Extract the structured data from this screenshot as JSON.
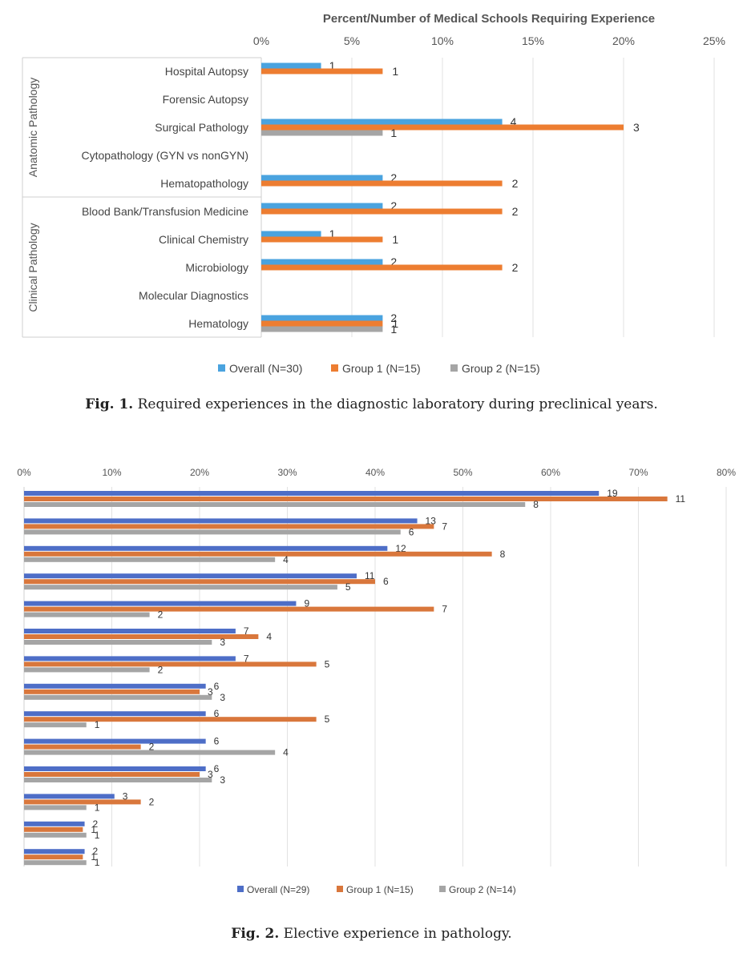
{
  "chart_data": [
    {
      "type": "bar",
      "orientation": "horizontal",
      "title": "Percent/Number of Medical Schools Requiring Experience",
      "xlim": [
        0,
        25
      ],
      "x_ticks": [
        "0%",
        "5%",
        "10%",
        "15%",
        "20%",
        "25%"
      ],
      "x_tick_values": [
        0,
        5,
        10,
        15,
        20,
        25
      ],
      "groups": [
        {
          "label": "Anatomic Pathology",
          "rows": [
            0,
            4
          ]
        },
        {
          "label": "Clinical Pathology",
          "rows": [
            5,
            9
          ]
        }
      ],
      "categories": [
        "Hospital Autopsy",
        "Forensic Autopsy",
        "Surgical Pathology",
        "Cytopathology (GYN vs nonGYN)",
        "Hematopathology",
        "Blood Bank/Transfusion Medicine",
        "Clinical Chemistry",
        "Microbiology",
        "Molecular Diagnostics",
        "Hematology"
      ],
      "series": [
        {
          "name": "Overall (N=30)",
          "color": "#4aa3df",
          "values": [
            3.3,
            null,
            13.3,
            null,
            6.7,
            6.7,
            3.3,
            6.7,
            null,
            6.7
          ],
          "labels": [
            "1",
            "",
            "4",
            "",
            "2",
            "2",
            "1",
            "2",
            "",
            "2"
          ]
        },
        {
          "name": "Group 1 (N=15)",
          "color": "#ed7d31",
          "values": [
            6.7,
            null,
            20.0,
            null,
            13.3,
            13.3,
            6.7,
            13.3,
            null,
            6.7
          ],
          "labels": [
            "1",
            "",
            "3",
            "",
            "2",
            "2",
            "1",
            "2",
            "",
            "1"
          ]
        },
        {
          "name": "Group 2 (N=15)",
          "color": "#a5a5a5",
          "values": [
            null,
            null,
            6.7,
            null,
            null,
            null,
            null,
            null,
            null,
            6.7
          ],
          "labels": [
            "",
            "",
            "1",
            "",
            "",
            "",
            "",
            "",
            "",
            "1"
          ]
        }
      ],
      "legend": "bottom"
    },
    {
      "type": "bar",
      "orientation": "horizontal",
      "xlim": [
        0,
        80
      ],
      "x_ticks": [
        "0%",
        "10%",
        "20%",
        "30%",
        "40%",
        "50%",
        "60%",
        "70%",
        "80%"
      ],
      "x_tick_values": [
        0,
        10,
        20,
        30,
        40,
        50,
        60,
        70,
        80
      ],
      "series": [
        {
          "name": "Overall (N=29)",
          "color": "#4e6ec7",
          "values": [
            65.5,
            44.8,
            41.4,
            37.9,
            31.0,
            24.1,
            24.1,
            20.7,
            20.7,
            20.7,
            20.7,
            10.3,
            6.9,
            6.9
          ],
          "labels": [
            "19",
            "13",
            "12",
            "11",
            "9",
            "7",
            "7",
            "6",
            "6",
            "6",
            "6",
            "3",
            "2",
            "2"
          ]
        },
        {
          "name": "Group 1 (N=15)",
          "color": "#d9773c",
          "values": [
            73.3,
            46.7,
            53.3,
            40.0,
            46.7,
            26.7,
            33.3,
            20.0,
            33.3,
            13.3,
            20.0,
            13.3,
            6.7,
            6.7
          ],
          "labels": [
            "11",
            "7",
            "8",
            "6",
            "7",
            "4",
            "5",
            "3",
            "5",
            "2",
            "3",
            "2",
            "1",
            "1"
          ]
        },
        {
          "name": "Group 2 (N=14)",
          "color": "#a5a5a5",
          "values": [
            57.1,
            42.9,
            28.6,
            35.7,
            14.3,
            21.4,
            14.3,
            21.4,
            7.1,
            28.6,
            21.4,
            7.1,
            7.1,
            7.1
          ],
          "labels": [
            "8",
            "6",
            "4",
            "5",
            "2",
            "3",
            "2",
            "3",
            "1",
            "4",
            "3",
            "1",
            "1",
            "1"
          ]
        }
      ],
      "legend": "bottom"
    }
  ],
  "captions": {
    "fig1_label": "Fig. 1.",
    "fig1_text": "Required experiences in the diagnostic laboratory during preclinical years.",
    "fig2_label": "Fig. 2.",
    "fig2_text": "Elective experience in pathology."
  }
}
